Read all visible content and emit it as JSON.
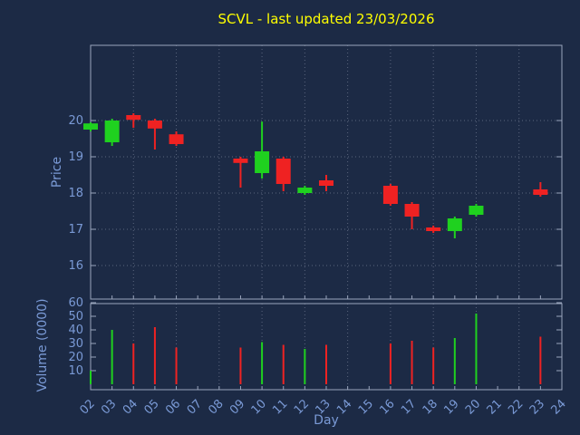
{
  "chart": {
    "title": "SCVL - last updated 23/03/2026",
    "title_color": "#ffff00",
    "xlabel": "Day",
    "price_axis_label": "Price",
    "volume_axis_label": "Volume (0000)",
    "axis_label_color": "#7a9ad6",
    "tick_color": "#7a9ad6",
    "frame_color": "#9aa5bd",
    "grid_color": "#5a657d",
    "up_color": "#1fd11f",
    "down_color": "#ef2222",
    "background": "#1c2a45"
  },
  "chart_data": {
    "type": "candlestick+volume",
    "x_days": [
      "02",
      "03",
      "04",
      "05",
      "06",
      "07",
      "08",
      "09",
      "10",
      "11",
      "12",
      "13",
      "14",
      "15",
      "16",
      "17",
      "18",
      "19",
      "20",
      "21",
      "22",
      "23",
      "24"
    ],
    "price_ticks": [
      16,
      17,
      18,
      19,
      20
    ],
    "price_range": [
      15.0,
      22.0
    ],
    "volume_ticks": [
      10,
      20,
      30,
      40,
      50,
      60
    ],
    "volume_range": [
      0,
      63
    ],
    "grid": true,
    "legend": "none",
    "candles": [
      {
        "day": "02",
        "open": 19.75,
        "high": 19.95,
        "low": 19.7,
        "close": 19.92,
        "volume": 10,
        "dir": "up"
      },
      {
        "day": "03",
        "open": 19.4,
        "high": 20.05,
        "low": 19.3,
        "close": 20.0,
        "volume": 40,
        "dir": "up"
      },
      {
        "day": "04",
        "open": 20.15,
        "high": 20.2,
        "low": 19.8,
        "close": 20.02,
        "volume": 30,
        "dir": "down"
      },
      {
        "day": "05",
        "open": 20.0,
        "high": 20.05,
        "low": 19.2,
        "close": 19.78,
        "volume": 42,
        "dir": "down"
      },
      {
        "day": "06",
        "open": 19.62,
        "high": 19.7,
        "low": 19.3,
        "close": 19.35,
        "volume": 27,
        "dir": "down"
      },
      {
        "day": "09",
        "open": 18.95,
        "high": 19.0,
        "low": 18.15,
        "close": 18.83,
        "volume": 27,
        "dir": "down"
      },
      {
        "day": "10",
        "open": 18.55,
        "high": 19.97,
        "low": 18.4,
        "close": 19.15,
        "volume": 31,
        "dir": "up"
      },
      {
        "day": "11",
        "open": 18.95,
        "high": 19.0,
        "low": 18.05,
        "close": 18.25,
        "volume": 29,
        "dir": "down"
      },
      {
        "day": "12",
        "open": 18.0,
        "high": 18.2,
        "low": 17.95,
        "close": 18.15,
        "volume": 26,
        "dir": "up"
      },
      {
        "day": "13",
        "open": 18.35,
        "high": 18.5,
        "low": 18.05,
        "close": 18.2,
        "volume": 29,
        "dir": "down"
      },
      {
        "day": "16",
        "open": 18.2,
        "high": 18.25,
        "low": 17.65,
        "close": 17.7,
        "volume": 30,
        "dir": "down"
      },
      {
        "day": "17",
        "open": 17.7,
        "high": 17.75,
        "low": 17.0,
        "close": 17.35,
        "volume": 32,
        "dir": "down"
      },
      {
        "day": "18",
        "open": 17.05,
        "high": 17.1,
        "low": 16.9,
        "close": 16.95,
        "volume": 27,
        "dir": "down"
      },
      {
        "day": "19",
        "open": 16.95,
        "high": 17.35,
        "low": 16.75,
        "close": 17.3,
        "volume": 34,
        "dir": "up"
      },
      {
        "day": "20",
        "open": 17.4,
        "high": 17.7,
        "low": 17.35,
        "close": 17.65,
        "volume": 52,
        "dir": "up"
      },
      {
        "day": "23",
        "open": 18.1,
        "high": 18.3,
        "low": 17.9,
        "close": 17.95,
        "volume": 35,
        "dir": "down"
      }
    ]
  }
}
